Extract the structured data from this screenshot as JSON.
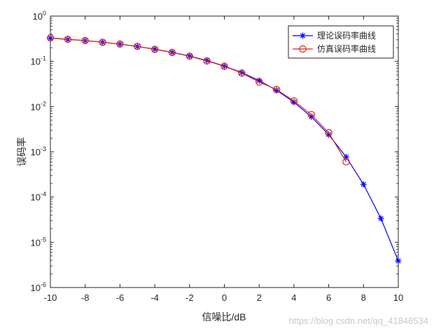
{
  "chart_data": {
    "type": "line",
    "title": "",
    "xlabel": "信噪比/dB",
    "ylabel": "误码率",
    "xlim": [
      -10,
      10
    ],
    "ylim": [
      1e-06,
      1
    ],
    "yscale": "log",
    "grid": false,
    "legend_position": "top-right",
    "x_ticks": [
      "-10",
      "-8",
      "-6",
      "-4",
      "-2",
      "0",
      "2",
      "4",
      "6",
      "8",
      "10"
    ],
    "y_ticks": [
      {
        "base": "10",
        "exp": "-6",
        "value": 1e-06
      },
      {
        "base": "10",
        "exp": "-5",
        "value": 1e-05
      },
      {
        "base": "10",
        "exp": "-4",
        "value": 0.0001
      },
      {
        "base": "10",
        "exp": "-3",
        "value": 0.001
      },
      {
        "base": "10",
        "exp": "-2",
        "value": 0.01
      },
      {
        "base": "10",
        "exp": "-1",
        "value": 0.1
      },
      {
        "base": "10",
        "exp": "0",
        "value": 1
      }
    ],
    "series": [
      {
        "name": "理论误码率曲线",
        "color": "#0000ff",
        "marker": "asterisk",
        "x": [
          -10,
          -9,
          -8,
          -7,
          -6,
          -5,
          -4,
          -3,
          -2,
          -1,
          0,
          1,
          2,
          3,
          4,
          5,
          6,
          7,
          8,
          9,
          10
        ],
        "y": [
          0.327,
          0.305,
          0.287,
          0.265,
          0.24,
          0.213,
          0.186,
          0.158,
          0.131,
          0.104,
          0.0786,
          0.0563,
          0.0375,
          0.0229,
          0.0125,
          0.00595,
          0.00239,
          0.00077,
          0.000191,
          3.36e-05,
          3.87e-06
        ]
      },
      {
        "name": "仿真误码率曲线",
        "color": "#e02020",
        "marker": "circle",
        "x": [
          -10,
          -9,
          -8,
          -7,
          -6,
          -5,
          -4,
          -3,
          -2,
          -1,
          0,
          1,
          2,
          3,
          4,
          5,
          6,
          7
        ],
        "y": [
          0.33,
          0.306,
          0.288,
          0.264,
          0.241,
          0.214,
          0.184,
          0.157,
          0.13,
          0.102,
          0.078,
          0.055,
          0.035,
          0.0238,
          0.0133,
          0.00665,
          0.00263,
          0.0006
        ]
      }
    ]
  },
  "watermark": "https://blog.csdn.net/qq_41846534"
}
